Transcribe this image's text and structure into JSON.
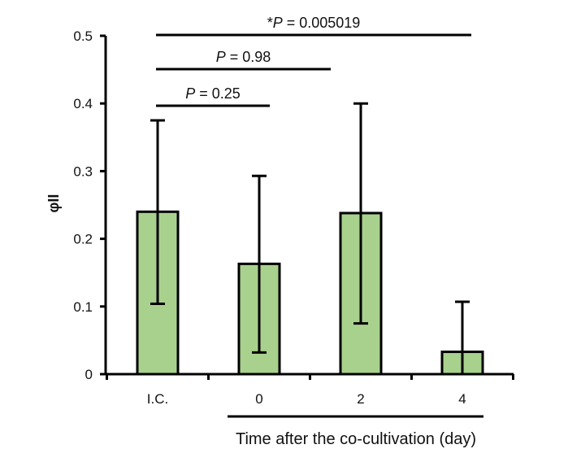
{
  "chart_data": {
    "type": "bar",
    "categories": [
      "I.C.",
      "0",
      "2",
      "4"
    ],
    "values": [
      0.24,
      0.163,
      0.238,
      0.033
    ],
    "error_upper": [
      0.375,
      0.293,
      0.4,
      0.107
    ],
    "error_lower": [
      0.104,
      0.032,
      0.075,
      0
    ],
    "ylabel": "φII",
    "xlabel": "Time after the co-cultivation (day)",
    "ylim": [
      0,
      0.5
    ],
    "yticks": [
      "0",
      "0.1",
      "0.2",
      "0.3",
      "0.4",
      "0.5"
    ],
    "ytick_values": [
      0,
      0.1,
      0.2,
      0.3,
      0.4,
      0.5
    ],
    "bar_color": "#a9d18e",
    "edge_color": "#000000",
    "comparisons": [
      {
        "from": "I.C.",
        "to": "0",
        "prefix": "",
        "p": "P",
        "text": " = 0.25",
        "level": 0.4
      },
      {
        "from": "I.C.",
        "to": "2",
        "prefix": "",
        "p": "P",
        "text": " = 0.98",
        "level": 0.45
      },
      {
        "from": "I.C.",
        "to": "4",
        "prefix": "*",
        "p": "P",
        "text": " = 0.005019",
        "level": 0.5
      }
    ]
  }
}
